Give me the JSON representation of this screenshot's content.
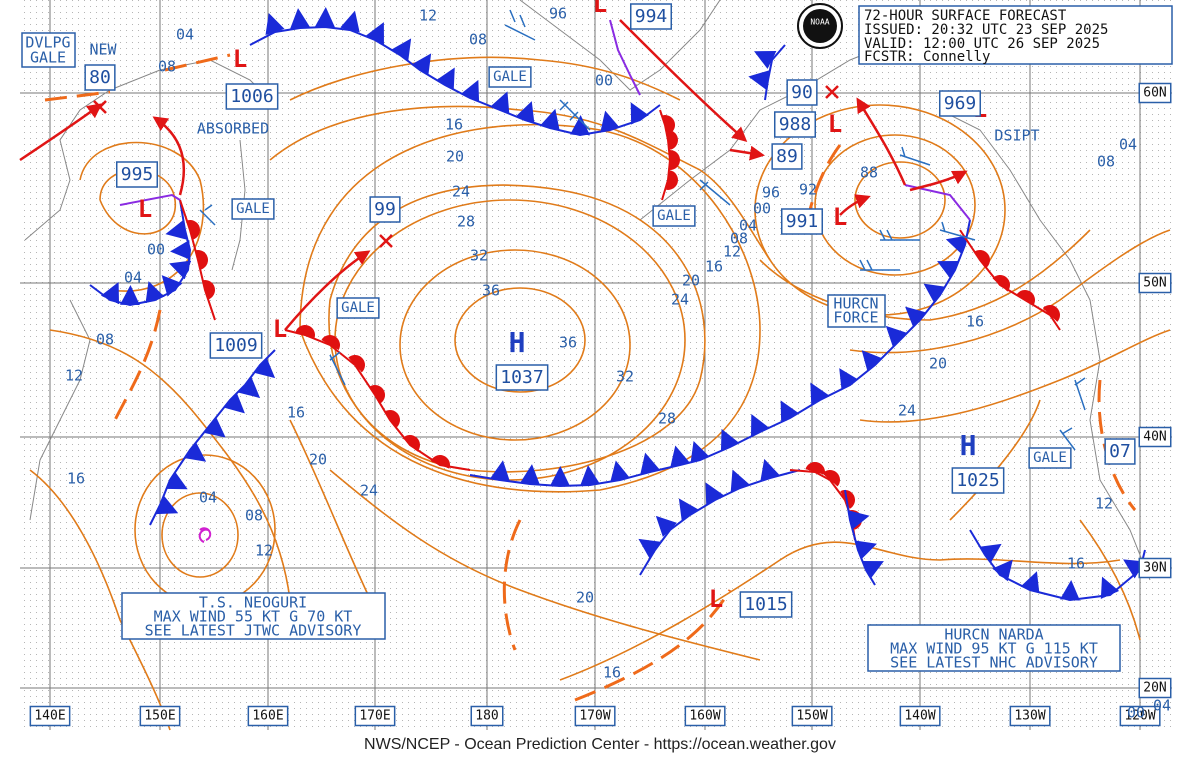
{
  "header": {
    "title": "72-HOUR SURFACE FORECAST",
    "issued": "ISSUED: 20:32 UTC 23 SEP 2025",
    "valid": "VALID: 12:00 UTC 26 SEP 2025",
    "forecaster": "FCSTR: Connelly"
  },
  "logo": "NOAA",
  "footer": "NWS/NCEP - Ocean Prediction Center - https://ocean.weather.gov",
  "longitudes": [
    "140E",
    "150E",
    "160E",
    "170E",
    "180",
    "170W",
    "160W",
    "150W",
    "140W",
    "130W",
    "120W"
  ],
  "latitudes": [
    "60N",
    "50N",
    "40N",
    "30N",
    "20N"
  ],
  "warnings": {
    "dvlpg_gale": [
      "DVLPG",
      "GALE"
    ],
    "gales": [
      "GALE",
      "GALE",
      "GALE",
      "GALE",
      "GALE"
    ],
    "hurcn_force": [
      "HURCN",
      "FORCE"
    ],
    "new": "NEW",
    "absorbed": "ABSORBED",
    "dsipt": "DSIPT"
  },
  "centers": [
    {
      "symbol": "L",
      "pressure": "1006"
    },
    {
      "symbol": "L",
      "pressure": "995"
    },
    {
      "symbol": "L",
      "pressure": "1009"
    },
    {
      "symbol": "L",
      "pressure": "994"
    },
    {
      "symbol": "L",
      "pressure": "988"
    },
    {
      "symbol": "L",
      "pressure": "969"
    },
    {
      "symbol": "L",
      "pressure": "991"
    },
    {
      "symbol": "L",
      "pressure": "1015"
    },
    {
      "symbol": "H",
      "pressure": "1037"
    },
    {
      "symbol": "H",
      "pressure": "1025"
    }
  ],
  "position_labels": [
    "80",
    "99",
    "90",
    "89",
    "07"
  ],
  "isobar_labels": [
    "12",
    "04",
    "08",
    "08",
    "00",
    "16",
    "20",
    "24",
    "28",
    "32",
    "36",
    "36",
    "32",
    "28",
    "24",
    "20",
    "16",
    "12",
    "16",
    "20",
    "24",
    "08",
    "04",
    "12",
    "16",
    "08",
    "12",
    "16",
    "16",
    "20",
    "24",
    "04",
    "08",
    "12",
    "20",
    "16",
    "00",
    "04",
    "96",
    "00",
    "04",
    "96",
    "92",
    "00",
    "04",
    "08",
    "88"
  ],
  "storms": [
    {
      "name": "T.S. NEOGURI",
      "wind": "MAX WIND 55 KT G 70 KT",
      "advisory": "SEE LATEST JTWC ADVISORY"
    },
    {
      "name": "HURCN NARDA",
      "wind": "MAX WIND 95 KT G 115 KT",
      "advisory": "SEE LATEST NHC ADVISORY"
    }
  ]
}
